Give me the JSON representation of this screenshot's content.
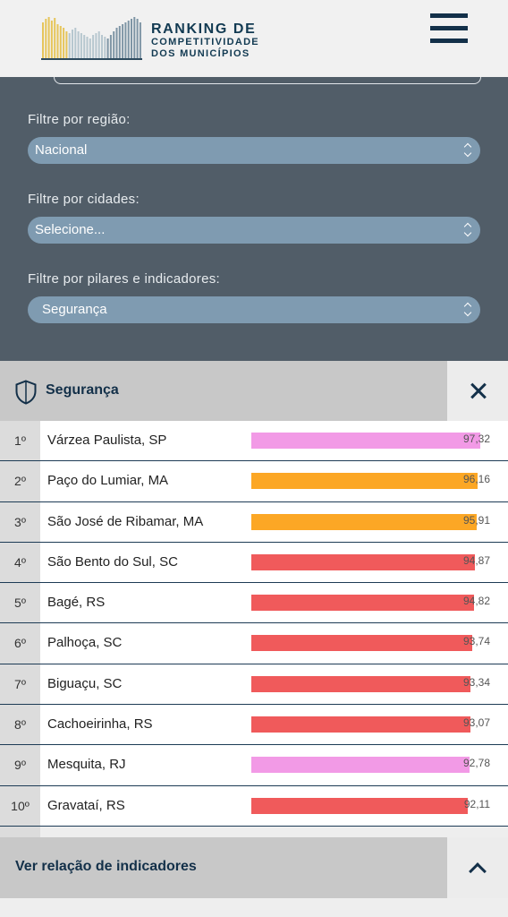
{
  "logo": {
    "line1": "RANKING DE",
    "line2": "COMPETITIVIDADE",
    "line3": "DOS MUNICÍPIOS"
  },
  "filters": {
    "region_label": "Filtre por região:",
    "region_value": "Nacional",
    "cities_label": "Filtre por cidades:",
    "cities_value": "Selecione...",
    "pillars_label": "Filtre por pilares e indicadores:",
    "pillars_value": "Segurança"
  },
  "section": {
    "title": "Segurança"
  },
  "colors": {
    "pink": "#f29ae6",
    "orange": "#fca725",
    "red": "#f05a5b"
  },
  "ranking": [
    {
      "pos": "1º",
      "city": "Várzea Paulista, SP",
      "value": 97.32,
      "value_label": "97,32",
      "color": "pink"
    },
    {
      "pos": "2º",
      "city": "Paço do Lumiar, MA",
      "value": 96.16,
      "value_label": "96,16",
      "color": "orange"
    },
    {
      "pos": "3º",
      "city": "São José de Ribamar, MA",
      "value": 95.91,
      "value_label": "95,91",
      "color": "orange"
    },
    {
      "pos": "4º",
      "city": "São Bento do Sul, SC",
      "value": 94.87,
      "value_label": "94,87",
      "color": "red"
    },
    {
      "pos": "5º",
      "city": "Bagé, RS",
      "value": 94.82,
      "value_label": "94,82",
      "color": "red"
    },
    {
      "pos": "6º",
      "city": "Palhoça, SC",
      "value": 93.74,
      "value_label": "93,74",
      "color": "red"
    },
    {
      "pos": "7º",
      "city": "Biguaçu, SC",
      "value": 93.34,
      "value_label": "93,34",
      "color": "red"
    },
    {
      "pos": "8º",
      "city": "Cachoeirinha, RS",
      "value": 93.07,
      "value_label": "93,07",
      "color": "red"
    },
    {
      "pos": "9º",
      "city": "Mesquita, RJ",
      "value": 92.78,
      "value_label": "92,78",
      "color": "pink"
    },
    {
      "pos": "10º",
      "city": "Gravataí, RS",
      "value": 92.11,
      "value_label": "92,11",
      "color": "red"
    }
  ],
  "footer": {
    "title": "Ver relação de indicadores"
  },
  "icons": {
    "menu": "hamburger-icon",
    "section": "shield-icon",
    "close": "close-icon",
    "footer_toggle": "chevron-up-icon"
  }
}
